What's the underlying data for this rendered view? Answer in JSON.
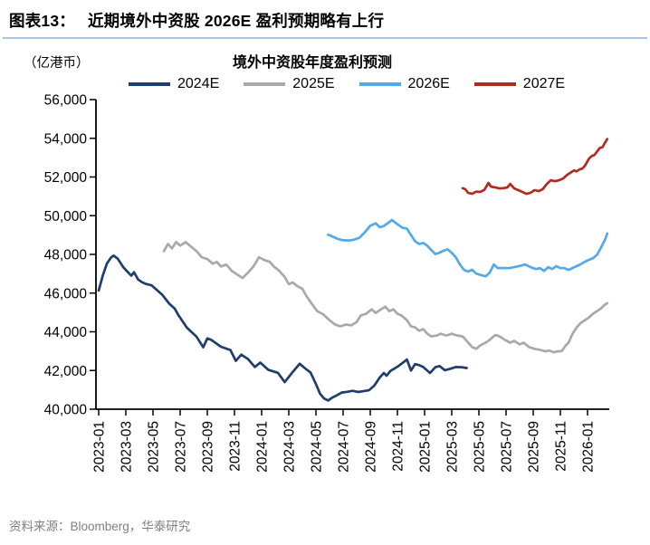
{
  "header": {
    "label": "图表13：",
    "title": "近期境外中资股 2026E 盈利预期略有上行"
  },
  "footer": {
    "source": "资料来源：Bloomberg，华泰研究"
  },
  "colors": {
    "header_rule": "#a9c6e8",
    "axis": "#000000",
    "source_text": "#7f7f7f"
  },
  "chart_data": {
    "type": "line",
    "title": "境外中资股年度盈利预测",
    "unit_label": "（亿港币）",
    "xlabel": "",
    "ylabel": "盈利预测（亿港币）",
    "ylim": [
      40000,
      56000
    ],
    "ytick_step": 2000,
    "grid": false,
    "legend_position": "top",
    "y_tick_labels": [
      "56,000",
      "54,000",
      "52,000",
      "50,000",
      "48,000",
      "46,000",
      "44,000",
      "42,000",
      "40,000"
    ],
    "x_ticks": [
      "2023-01",
      "2023-03",
      "2023-05",
      "2023-07",
      "2023-09",
      "2023-11",
      "2024-01",
      "2024-03",
      "2024-05",
      "2024-07",
      "2024-09",
      "2024-11",
      "2025-01",
      "2025-03",
      "2025-05",
      "2025-07",
      "2025-09",
      "2025-11",
      "2026-01"
    ],
    "x_unit_note": "points use months since 2023-01 as x",
    "series": [
      {
        "name": "2024E",
        "color": "#1f3d6d",
        "points": [
          [
            0,
            46130
          ],
          [
            0.3,
            46900
          ],
          [
            0.6,
            47520
          ],
          [
            0.9,
            47830
          ],
          [
            1.1,
            47940
          ],
          [
            1.4,
            47780
          ],
          [
            1.8,
            47350
          ],
          [
            2.1,
            47120
          ],
          [
            2.4,
            46900
          ],
          [
            2.6,
            47080
          ],
          [
            2.9,
            46710
          ],
          [
            3.2,
            46560
          ],
          [
            3.5,
            46470
          ],
          [
            3.9,
            46400
          ],
          [
            4.3,
            46150
          ],
          [
            4.7,
            45900
          ],
          [
            5.2,
            45450
          ],
          [
            5.6,
            45200
          ],
          [
            5.9,
            44830
          ],
          [
            6.5,
            44210
          ],
          [
            7.2,
            43750
          ],
          [
            7.7,
            43200
          ],
          [
            8,
            43660
          ],
          [
            8.3,
            43580
          ],
          [
            9,
            43230
          ],
          [
            9.7,
            43060
          ],
          [
            10.1,
            42500
          ],
          [
            10.5,
            42820
          ],
          [
            11,
            42590
          ],
          [
            11.5,
            42180
          ],
          [
            11.9,
            42410
          ],
          [
            12.5,
            42030
          ],
          [
            13.2,
            41880
          ],
          [
            13.7,
            41400
          ],
          [
            14.3,
            41930
          ],
          [
            14.8,
            42350
          ],
          [
            15.2,
            42110
          ],
          [
            15.6,
            41900
          ],
          [
            16,
            41300
          ],
          [
            16.3,
            40800
          ],
          [
            16.6,
            40550
          ],
          [
            16.9,
            40450
          ],
          [
            17.2,
            40600
          ],
          [
            17.5,
            40700
          ],
          [
            17.9,
            40860
          ],
          [
            18.3,
            40900
          ],
          [
            18.7,
            40950
          ],
          [
            19.1,
            40890
          ],
          [
            19.5,
            40930
          ],
          [
            19.9,
            40980
          ],
          [
            20.3,
            41220
          ],
          [
            20.7,
            41640
          ],
          [
            21,
            41870
          ],
          [
            21.2,
            41730
          ],
          [
            21.5,
            41990
          ],
          [
            21.8,
            42110
          ],
          [
            22.1,
            42240
          ],
          [
            22.4,
            42400
          ],
          [
            22.7,
            42570
          ],
          [
            23,
            42000
          ],
          [
            23.3,
            42330
          ],
          [
            23.6,
            42280
          ],
          [
            23.9,
            42180
          ],
          [
            24.4,
            41870
          ],
          [
            24.8,
            42170
          ],
          [
            25.1,
            42230
          ],
          [
            25.5,
            42010
          ],
          [
            25.9,
            42090
          ],
          [
            26.3,
            42180
          ],
          [
            26.7,
            42170
          ],
          [
            27.1,
            42130
          ]
        ]
      },
      {
        "name": "2025E",
        "color": "#a9a9a9",
        "points": [
          [
            4.8,
            48170
          ],
          [
            5.1,
            48540
          ],
          [
            5.4,
            48310
          ],
          [
            5.7,
            48640
          ],
          [
            6,
            48450
          ],
          [
            6.4,
            48630
          ],
          [
            6.8,
            48400
          ],
          [
            7.2,
            48170
          ],
          [
            7.6,
            47850
          ],
          [
            8,
            47760
          ],
          [
            8.4,
            47520
          ],
          [
            8.7,
            47610
          ],
          [
            9,
            47380
          ],
          [
            9.4,
            47470
          ],
          [
            9.8,
            47150
          ],
          [
            10.2,
            46960
          ],
          [
            10.6,
            46780
          ],
          [
            11,
            47060
          ],
          [
            11.4,
            47380
          ],
          [
            11.8,
            47850
          ],
          [
            12.2,
            47710
          ],
          [
            12.6,
            47610
          ],
          [
            12.9,
            47380
          ],
          [
            13.3,
            47150
          ],
          [
            13.7,
            46830
          ],
          [
            14,
            46460
          ],
          [
            14.3,
            46550
          ],
          [
            14.6,
            46370
          ],
          [
            15,
            46220
          ],
          [
            15.3,
            45850
          ],
          [
            15.7,
            45440
          ],
          [
            16.1,
            45060
          ],
          [
            16.5,
            44920
          ],
          [
            17,
            44600
          ],
          [
            17.4,
            44380
          ],
          [
            17.8,
            44280
          ],
          [
            18.2,
            44380
          ],
          [
            18.6,
            44330
          ],
          [
            19,
            44510
          ],
          [
            19.3,
            44840
          ],
          [
            19.7,
            44930
          ],
          [
            20.1,
            45160
          ],
          [
            20.4,
            44980
          ],
          [
            20.7,
            45120
          ],
          [
            21.1,
            45300
          ],
          [
            21.4,
            45070
          ],
          [
            21.7,
            45160
          ],
          [
            22,
            44930
          ],
          [
            22.3,
            44840
          ],
          [
            22.7,
            44600
          ],
          [
            23,
            44280
          ],
          [
            23.3,
            44230
          ],
          [
            23.6,
            44050
          ],
          [
            23.9,
            44140
          ],
          [
            24.2,
            43900
          ],
          [
            24.5,
            43760
          ],
          [
            24.9,
            43810
          ],
          [
            25.2,
            43900
          ],
          [
            25.6,
            43810
          ],
          [
            26,
            43900
          ],
          [
            26.4,
            43810
          ],
          [
            26.8,
            43760
          ],
          [
            27.1,
            43530
          ],
          [
            27.5,
            43210
          ],
          [
            27.8,
            43120
          ],
          [
            28.1,
            43300
          ],
          [
            28.5,
            43440
          ],
          [
            28.8,
            43590
          ],
          [
            29.2,
            43830
          ],
          [
            29.5,
            43770
          ],
          [
            29.9,
            43590
          ],
          [
            30.3,
            43440
          ],
          [
            30.6,
            43530
          ],
          [
            31,
            43350
          ],
          [
            31.3,
            43440
          ],
          [
            31.7,
            43210
          ],
          [
            32.1,
            43120
          ],
          [
            32.5,
            43070
          ],
          [
            32.9,
            42990
          ],
          [
            33.2,
            43030
          ],
          [
            33.5,
            42940
          ],
          [
            33.8,
            42990
          ],
          [
            34.1,
            43000
          ],
          [
            34.4,
            43300
          ],
          [
            34.6,
            43440
          ],
          [
            34.9,
            43900
          ],
          [
            35.2,
            44230
          ],
          [
            35.5,
            44460
          ],
          [
            35.8,
            44600
          ],
          [
            36.1,
            44740
          ],
          [
            36.4,
            44930
          ],
          [
            36.7,
            45070
          ],
          [
            37,
            45210
          ],
          [
            37.25,
            45390
          ],
          [
            37.45,
            45480
          ]
        ]
      },
      {
        "name": "2026E",
        "color": "#54a9ea",
        "points": [
          [
            16.9,
            49020
          ],
          [
            17.2,
            48930
          ],
          [
            17.6,
            48800
          ],
          [
            18,
            48730
          ],
          [
            18.4,
            48720
          ],
          [
            18.8,
            48760
          ],
          [
            19.2,
            48860
          ],
          [
            19.6,
            49140
          ],
          [
            20,
            49480
          ],
          [
            20.4,
            49610
          ],
          [
            20.7,
            49400
          ],
          [
            21,
            49470
          ],
          [
            21.3,
            49620
          ],
          [
            21.6,
            49780
          ],
          [
            22,
            49560
          ],
          [
            22.4,
            49370
          ],
          [
            22.7,
            49330
          ],
          [
            23,
            49000
          ],
          [
            23.3,
            48680
          ],
          [
            23.6,
            48540
          ],
          [
            23.9,
            48590
          ],
          [
            24.2,
            48450
          ],
          [
            24.5,
            48220
          ],
          [
            24.8,
            48020
          ],
          [
            25.1,
            48090
          ],
          [
            25.4,
            48190
          ],
          [
            25.7,
            48260
          ],
          [
            26,
            48080
          ],
          [
            26.3,
            47850
          ],
          [
            26.6,
            47480
          ],
          [
            26.9,
            47200
          ],
          [
            27.2,
            47110
          ],
          [
            27.5,
            47210
          ],
          [
            27.8,
            47010
          ],
          [
            28.2,
            46920
          ],
          [
            28.5,
            46870
          ],
          [
            28.8,
            47060
          ],
          [
            29.1,
            47480
          ],
          [
            29.4,
            47290
          ],
          [
            29.8,
            47300
          ],
          [
            30.2,
            47290
          ],
          [
            30.6,
            47340
          ],
          [
            31,
            47400
          ],
          [
            31.4,
            47480
          ],
          [
            31.8,
            47340
          ],
          [
            32.2,
            47240
          ],
          [
            32.5,
            47290
          ],
          [
            32.8,
            47150
          ],
          [
            33.1,
            47340
          ],
          [
            33.4,
            47240
          ],
          [
            33.7,
            47390
          ],
          [
            34,
            47290
          ],
          [
            34.3,
            47290
          ],
          [
            34.6,
            47200
          ],
          [
            34.9,
            47300
          ],
          [
            35.2,
            47390
          ],
          [
            35.5,
            47490
          ],
          [
            35.8,
            47620
          ],
          [
            36.1,
            47720
          ],
          [
            36.4,
            47800
          ],
          [
            36.7,
            47980
          ],
          [
            36.9,
            48230
          ],
          [
            37.1,
            48500
          ],
          [
            37.3,
            48780
          ],
          [
            37.45,
            49080
          ]
        ]
      },
      {
        "name": "2027E",
        "color": "#b12b20",
        "points": [
          [
            26.8,
            51420
          ],
          [
            27,
            51370
          ],
          [
            27.2,
            51180
          ],
          [
            27.5,
            51130
          ],
          [
            27.8,
            51240
          ],
          [
            28.1,
            51230
          ],
          [
            28.4,
            51330
          ],
          [
            28.7,
            51690
          ],
          [
            28.9,
            51500
          ],
          [
            29.2,
            51460
          ],
          [
            29.5,
            51410
          ],
          [
            29.8,
            51420
          ],
          [
            30.1,
            51460
          ],
          [
            30.3,
            51640
          ],
          [
            30.6,
            51410
          ],
          [
            30.9,
            51320
          ],
          [
            31.2,
            51230
          ],
          [
            31.5,
            51130
          ],
          [
            31.8,
            51180
          ],
          [
            32.1,
            51320
          ],
          [
            32.4,
            51270
          ],
          [
            32.7,
            51370
          ],
          [
            33,
            51640
          ],
          [
            33.3,
            51830
          ],
          [
            33.6,
            51780
          ],
          [
            33.9,
            51830
          ],
          [
            34.2,
            51920
          ],
          [
            34.5,
            52110
          ],
          [
            34.8,
            52250
          ],
          [
            35,
            52340
          ],
          [
            35.2,
            52290
          ],
          [
            35.4,
            52390
          ],
          [
            35.6,
            52430
          ],
          [
            35.8,
            52570
          ],
          [
            36.1,
            52940
          ],
          [
            36.3,
            53080
          ],
          [
            36.5,
            53130
          ],
          [
            36.7,
            53310
          ],
          [
            36.9,
            53500
          ],
          [
            37.1,
            53540
          ],
          [
            37.25,
            53730
          ],
          [
            37.45,
            53960
          ]
        ]
      }
    ]
  }
}
